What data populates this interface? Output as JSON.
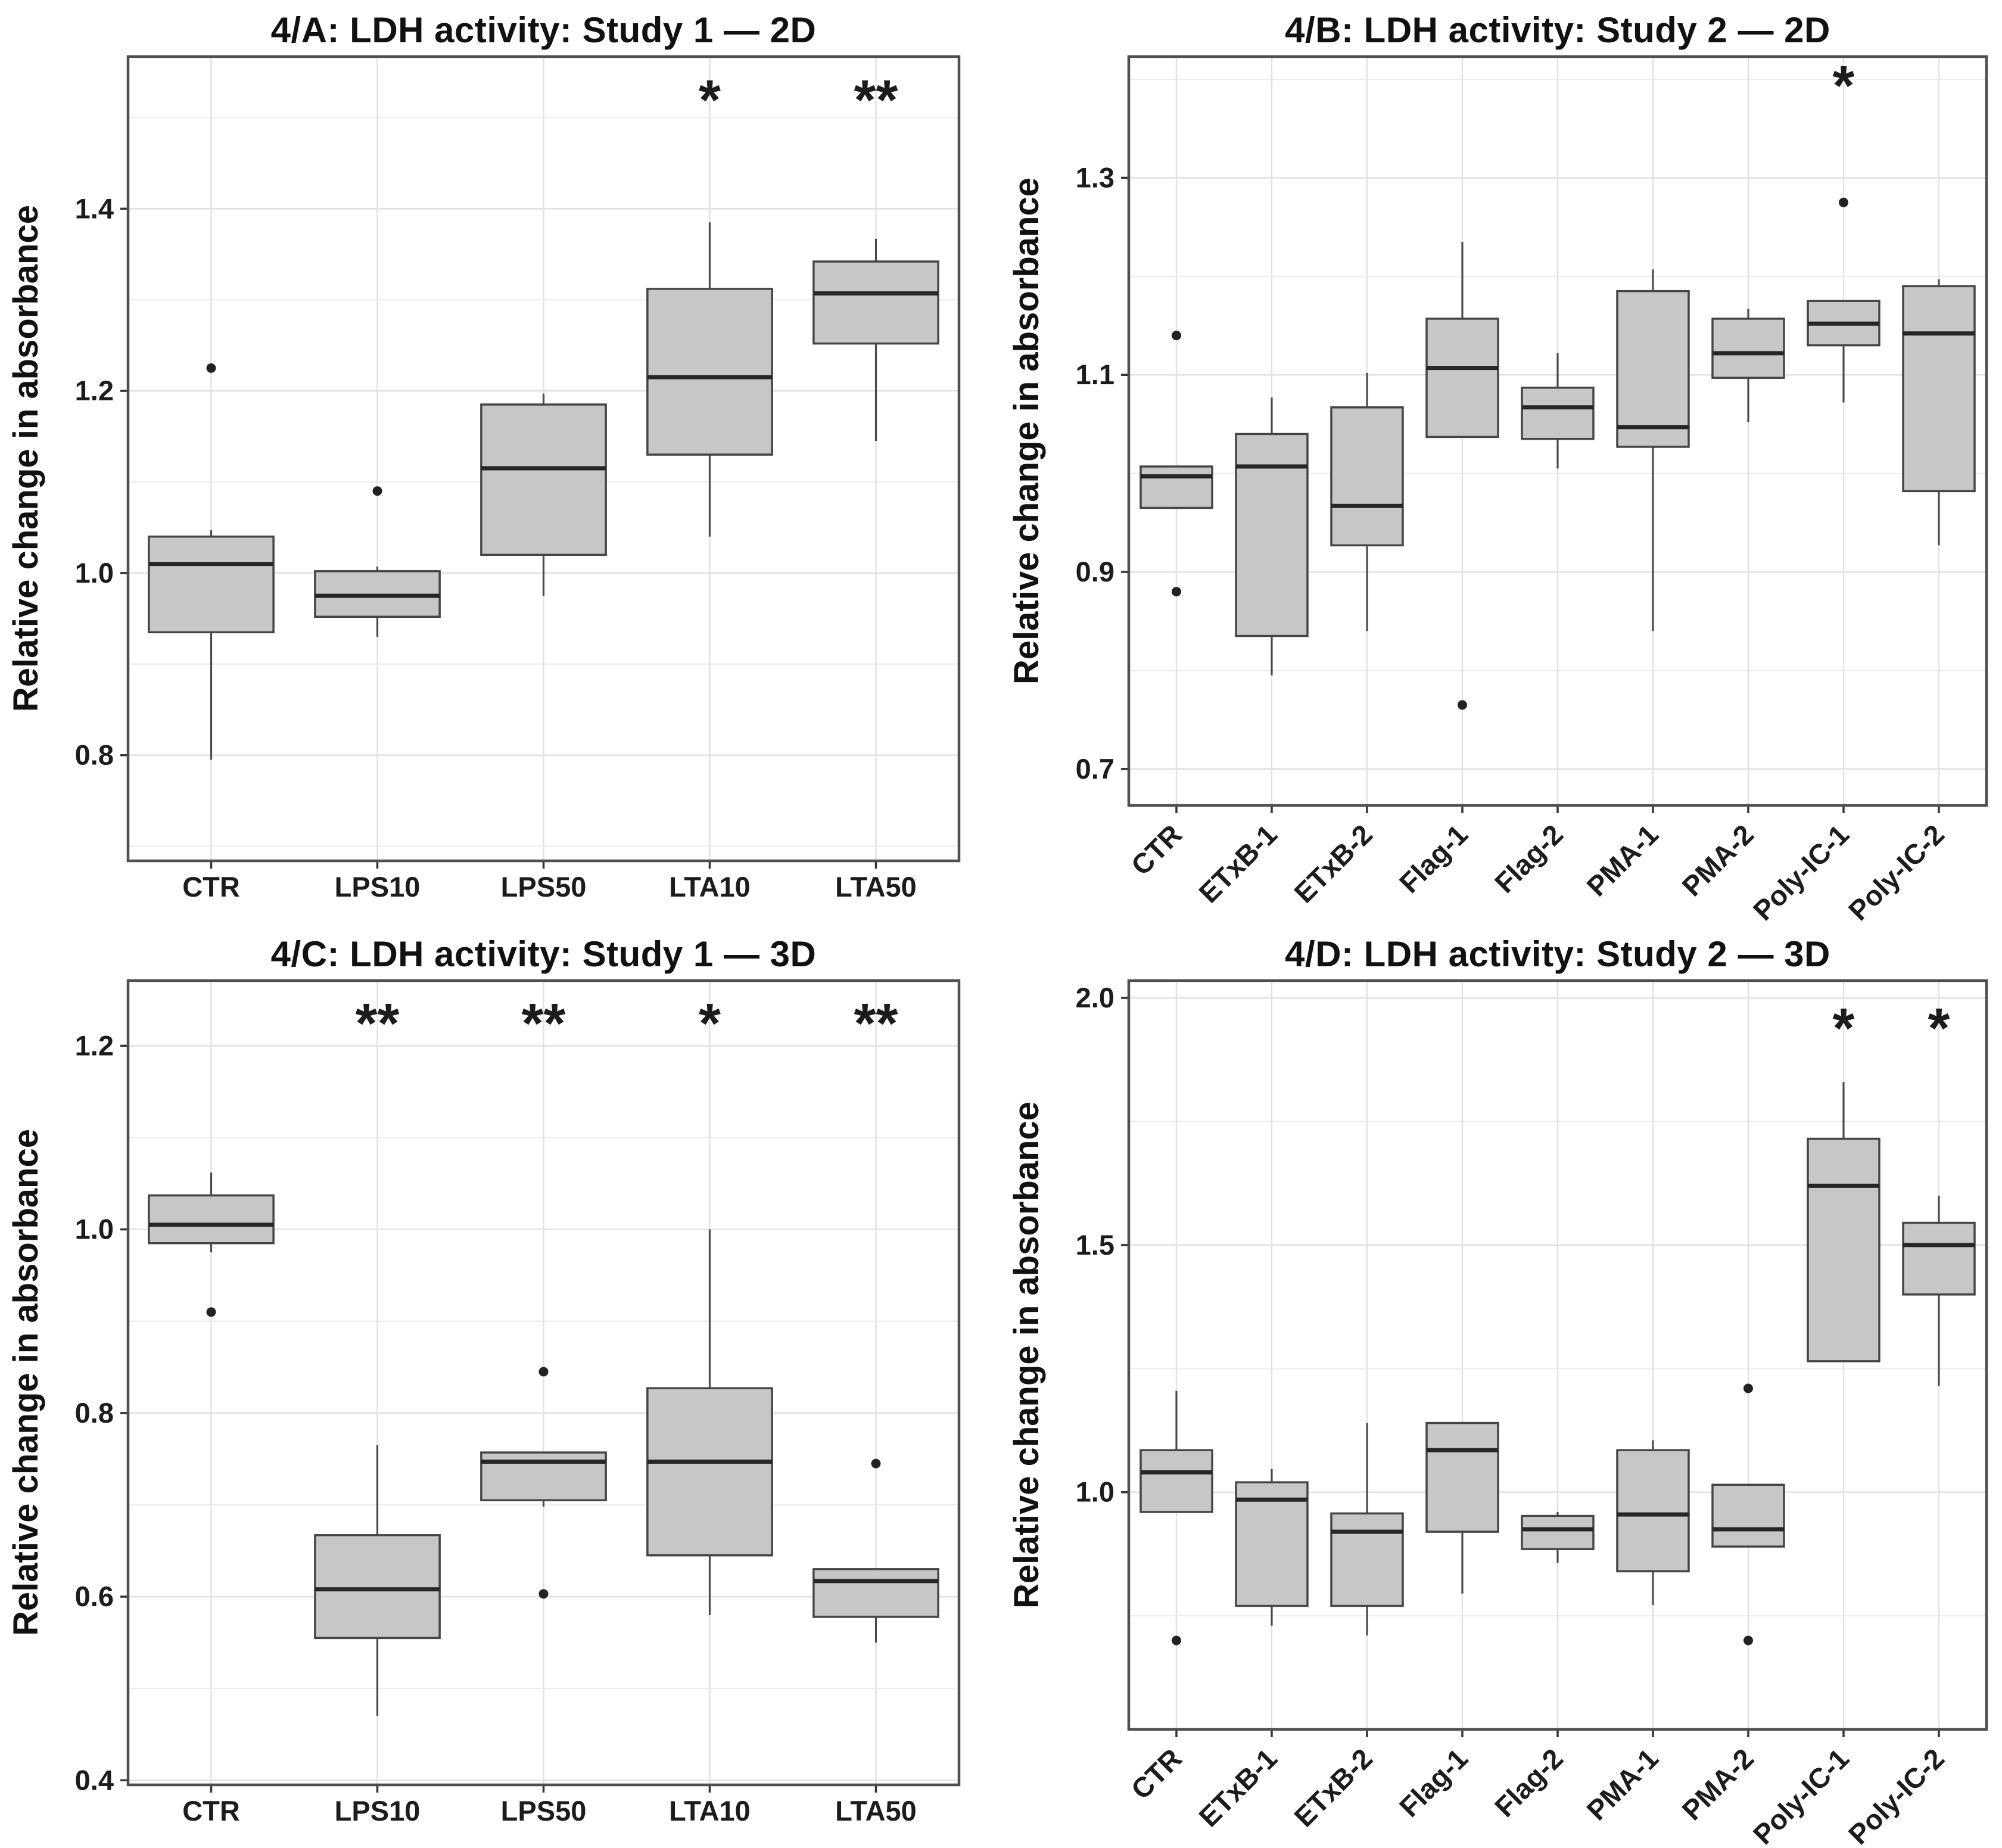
{
  "style": {
    "background": "#ffffff",
    "box_fill": "#c7c7c7",
    "box_stroke": "#454545",
    "median_color": "#262626",
    "whisker_color": "#4a4a4a",
    "grid_major": "#e2e2e2",
    "grid_minor": "#ededed",
    "panel_border": "#4f4f4f",
    "tick_color": "#333333",
    "text_color": "#1c1c1c",
    "outlier_color": "#222222"
  },
  "chart_data": [
    {
      "id": "4A",
      "type": "boxplot",
      "title": "4/A: LDH activity: Study 1 — 2D",
      "ylabel": "Relative change in absorbance",
      "ylim": [
        0.684,
        1.567
      ],
      "yticks": [
        0.8,
        1.0,
        1.2,
        1.4
      ],
      "rotate_x_labels": false,
      "sig_y": 1.52,
      "categories": [
        "CTR",
        "LPS10",
        "LPS50",
        "LTA10",
        "LTA50"
      ],
      "boxes": [
        {
          "label": "CTR",
          "q1": 0.935,
          "median": 1.01,
          "q3": 1.04,
          "whisker_low": 0.795,
          "whisker_high": 1.047,
          "outliers": [
            1.225
          ],
          "sig": ""
        },
        {
          "label": "LPS10",
          "q1": 0.952,
          "median": 0.975,
          "q3": 1.002,
          "whisker_low": 0.93,
          "whisker_high": 1.007,
          "outliers": [
            1.09
          ],
          "sig": ""
        },
        {
          "label": "LPS50",
          "q1": 1.02,
          "median": 1.115,
          "q3": 1.185,
          "whisker_low": 0.975,
          "whisker_high": 1.197,
          "outliers": [],
          "sig": ""
        },
        {
          "label": "LTA10",
          "q1": 1.13,
          "median": 1.215,
          "q3": 1.312,
          "whisker_low": 1.04,
          "whisker_high": 1.385,
          "outliers": [],
          "sig": "*"
        },
        {
          "label": "LTA50",
          "q1": 1.252,
          "median": 1.307,
          "q3": 1.342,
          "whisker_low": 1.145,
          "whisker_high": 1.367,
          "outliers": [],
          "sig": "**"
        }
      ]
    },
    {
      "id": "4B",
      "type": "boxplot",
      "title": "4/B: LDH activity: Study 2 — 2D",
      "ylabel": "Relative change in absorbance",
      "ylim": [
        0.663,
        1.423
      ],
      "yticks": [
        0.7,
        0.9,
        1.1,
        1.3
      ],
      "rotate_x_labels": true,
      "sig_y": 1.394,
      "categories": [
        "CTR",
        "ETxB-1",
        "ETxB-2",
        "Flag-1",
        "Flag-2",
        "PMA-1",
        "PMA-2",
        "Poly-IC-1",
        "Poly-IC-2"
      ],
      "boxes": [
        {
          "label": "CTR",
          "q1": 0.965,
          "median": 0.997,
          "q3": 1.007,
          "outliers": [
            1.14,
            0.88
          ],
          "sig": ""
        },
        {
          "label": "ETxB-1",
          "q1": 0.835,
          "median": 1.007,
          "q3": 1.04,
          "whisker_low": 0.795,
          "whisker_high": 1.077,
          "outliers": [],
          "sig": ""
        },
        {
          "label": "ETxB-2",
          "q1": 0.927,
          "median": 0.967,
          "q3": 1.067,
          "whisker_low": 0.84,
          "whisker_high": 1.102,
          "outliers": [],
          "sig": ""
        },
        {
          "label": "Flag-1",
          "q1": 1.037,
          "median": 1.107,
          "q3": 1.157,
          "whisker_high": 1.235,
          "outliers": [
            0.765
          ],
          "sig": ""
        },
        {
          "label": "Flag-2",
          "q1": 1.035,
          "median": 1.067,
          "q3": 1.087,
          "whisker_low": 1.005,
          "whisker_high": 1.122,
          "outliers": [],
          "sig": ""
        },
        {
          "label": "PMA-1",
          "q1": 1.027,
          "median": 1.047,
          "q3": 1.185,
          "whisker_low": 0.84,
          "whisker_high": 1.207,
          "outliers": [],
          "sig": ""
        },
        {
          "label": "PMA-2",
          "q1": 1.097,
          "median": 1.122,
          "q3": 1.157,
          "whisker_low": 1.052,
          "whisker_high": 1.167,
          "outliers": [],
          "sig": ""
        },
        {
          "label": "Poly-IC-1",
          "q1": 1.13,
          "median": 1.152,
          "q3": 1.175,
          "whisker_low": 1.072,
          "outliers": [
            1.275
          ],
          "sig": "*"
        },
        {
          "label": "Poly-IC-2",
          "q1": 0.982,
          "median": 1.142,
          "q3": 1.19,
          "whisker_low": 0.927,
          "whisker_high": 1.197,
          "outliers": [],
          "sig": ""
        }
      ]
    },
    {
      "id": "4C",
      "type": "boxplot",
      "title": "4/C: LDH activity: Study 1 — 3D",
      "ylabel": "Relative change in absorbance",
      "ylim": [
        0.395,
        1.271
      ],
      "yticks": [
        0.4,
        0.6,
        0.8,
        1.0,
        1.2
      ],
      "rotate_x_labels": false,
      "sig_y": 1.225,
      "categories": [
        "CTR",
        "LPS10",
        "LPS50",
        "LTA10",
        "LTA50"
      ],
      "boxes": [
        {
          "label": "CTR",
          "q1": 0.985,
          "median": 1.005,
          "q3": 1.037,
          "whisker_low": 0.975,
          "whisker_high": 1.062,
          "outliers": [
            0.91
          ],
          "sig": ""
        },
        {
          "label": "LPS10",
          "q1": 0.555,
          "median": 0.608,
          "q3": 0.667,
          "whisker_low": 0.47,
          "whisker_high": 0.765,
          "outliers": [],
          "sig": "**"
        },
        {
          "label": "LPS50",
          "q1": 0.705,
          "median": 0.747,
          "q3": 0.757,
          "whisker_low": 0.698,
          "outliers": [
            0.845,
            0.603
          ],
          "sig": "**"
        },
        {
          "label": "LTA10",
          "q1": 0.645,
          "median": 0.747,
          "q3": 0.827,
          "whisker_low": 0.58,
          "whisker_high": 1.0,
          "outliers": [],
          "sig": "*"
        },
        {
          "label": "LTA50",
          "q1": 0.578,
          "median": 0.617,
          "q3": 0.63,
          "whisker_low": 0.55,
          "outliers": [
            0.745
          ],
          "sig": "**"
        }
      ]
    },
    {
      "id": "4D",
      "type": "boxplot",
      "title": "4/D: LDH activity: Study 2 — 3D",
      "ylabel": "Relative change in absorbance",
      "ylim": [
        0.52,
        2.035
      ],
      "yticks": [
        1.0,
        1.5,
        2.0
      ],
      "rotate_x_labels": true,
      "sig_y": 1.94,
      "categories": [
        "CTR",
        "ETxB-1",
        "ETxB-2",
        "Flag-1",
        "Flag-2",
        "PMA-1",
        "PMA-2",
        "Poly-IC-1",
        "Poly-IC-2"
      ],
      "boxes": [
        {
          "label": "CTR",
          "q1": 0.96,
          "median": 1.04,
          "q3": 1.085,
          "whisker_high": 1.205,
          "outliers": [
            0.7
          ],
          "sig": ""
        },
        {
          "label": "ETxB-1",
          "q1": 0.77,
          "median": 0.985,
          "q3": 1.02,
          "whisker_low": 0.73,
          "whisker_high": 1.047,
          "outliers": [],
          "sig": ""
        },
        {
          "label": "ETxB-2",
          "q1": 0.77,
          "median": 0.92,
          "q3": 0.957,
          "whisker_low": 0.71,
          "whisker_high": 1.14,
          "outliers": [],
          "sig": ""
        },
        {
          "label": "Flag-1",
          "q1": 0.92,
          "median": 1.085,
          "q3": 1.14,
          "whisker_low": 0.795,
          "outliers": [],
          "sig": ""
        },
        {
          "label": "Flag-2",
          "q1": 0.885,
          "median": 0.925,
          "q3": 0.952,
          "whisker_low": 0.857,
          "whisker_high": 0.96,
          "outliers": [],
          "sig": ""
        },
        {
          "label": "PMA-1",
          "q1": 0.84,
          "median": 0.955,
          "q3": 1.085,
          "whisker_low": 0.772,
          "whisker_high": 1.105,
          "outliers": [],
          "sig": ""
        },
        {
          "label": "PMA-2",
          "q1": 0.89,
          "median": 0.925,
          "q3": 1.015,
          "outliers": [
            1.21,
            0.7
          ],
          "sig": ""
        },
        {
          "label": "Poly-IC-1",
          "q1": 1.265,
          "median": 1.62,
          "q3": 1.715,
          "whisker_high": 1.83,
          "outliers": [],
          "sig": "*"
        },
        {
          "label": "Poly-IC-2",
          "q1": 1.4,
          "median": 1.5,
          "q3": 1.545,
          "whisker_low": 1.215,
          "whisker_high": 1.6,
          "outliers": [],
          "sig": "*"
        }
      ]
    }
  ]
}
